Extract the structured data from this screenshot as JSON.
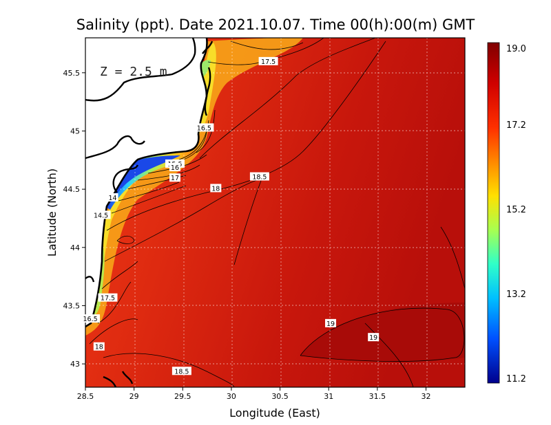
{
  "chart_data": {
    "type": "heatmap",
    "title": "Salinity (ppt). Date 2021.10.07. Time 00(h):00(m) GMT",
    "xlabel": "Longitude (East)",
    "ylabel": "Latitude (North)",
    "xlim": [
      28.5,
      32.4
    ],
    "ylim": [
      42.8,
      45.8
    ],
    "xticks": [
      "28.5",
      "29",
      "29.5",
      "30",
      "30.5",
      "31",
      "31.5",
      "32"
    ],
    "yticks": [
      "43",
      "43.5",
      "44",
      "44.5",
      "45",
      "45.5"
    ],
    "depth_label": "Z = 2.5 m",
    "grid": true,
    "colorbar": {
      "min": 11.2,
      "max": 19.0,
      "ticks": [
        "19.0",
        "17.2",
        "15.2",
        "13.2",
        "11.2"
      ]
    },
    "contour_labels": [
      {
        "text": "17.5",
        "lon": 30.38,
        "lat": 45.6
      },
      {
        "text": "16.5",
        "lon": 29.72,
        "lat": 45.03
      },
      {
        "text": "15.5",
        "lon": 29.42,
        "lat": 44.72
      },
      {
        "text": "16",
        "lon": 29.42,
        "lat": 44.69
      },
      {
        "text": "17",
        "lon": 29.42,
        "lat": 44.6
      },
      {
        "text": "18",
        "lon": 29.84,
        "lat": 44.51
      },
      {
        "text": "18.5",
        "lon": 30.29,
        "lat": 44.61
      },
      {
        "text": "14",
        "lon": 28.78,
        "lat": 44.43
      },
      {
        "text": "14.5",
        "lon": 28.66,
        "lat": 44.28
      },
      {
        "text": "17.5",
        "lon": 28.73,
        "lat": 43.57
      },
      {
        "text": "16.5",
        "lon": 28.55,
        "lat": 43.39
      },
      {
        "text": "18",
        "lon": 28.64,
        "lat": 43.15
      },
      {
        "text": "18.5",
        "lon": 29.49,
        "lat": 42.94
      },
      {
        "text": "19",
        "lon": 31.02,
        "lat": 43.35
      },
      {
        "text": "19",
        "lon": 31.46,
        "lat": 43.23
      }
    ]
  }
}
